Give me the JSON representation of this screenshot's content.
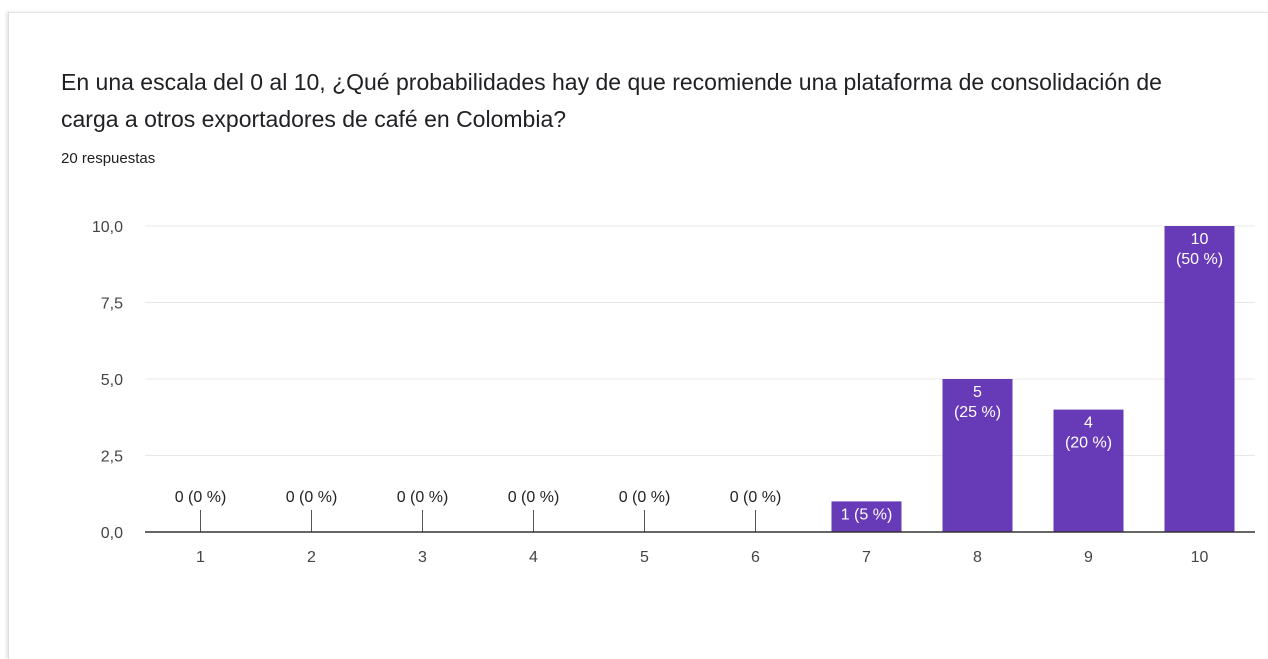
{
  "card": {
    "question": "En una escala del 0 al 10, ¿Qué probabilidades hay de que recomiende una plataforma de consolidación de carga a otros exportadores de café en Colombia?",
    "responses": "20 respuestas"
  },
  "colors": {
    "bar": "#673ab7",
    "grid": "#e8e8e8",
    "axis": "#333333"
  },
  "chart_data": {
    "type": "bar",
    "title": "En una escala del 0 al 10, ¿Qué probabilidades hay de que recomiende una plataforma de consolidación de carga a otros exportadores de café en Colombia?",
    "categories": [
      "1",
      "2",
      "3",
      "4",
      "5",
      "6",
      "7",
      "8",
      "9",
      "10"
    ],
    "values": [
      0,
      0,
      0,
      0,
      0,
      0,
      1,
      5,
      4,
      10
    ],
    "data_labels": [
      "0 (0 %)",
      "0 (0 %)",
      "0 (0 %)",
      "0 (0 %)",
      "0 (0 %)",
      "0 (0 %)",
      "1 (5 %)",
      "5\n(25 %)",
      "4\n(20 %)",
      "10\n(50 %)"
    ],
    "yticks": [
      "0,0",
      "2,5",
      "5,0",
      "7,5",
      "10,0"
    ],
    "ylim": [
      0,
      10
    ],
    "xlabel": "",
    "ylabel": "",
    "grid": true,
    "legend": "none"
  }
}
